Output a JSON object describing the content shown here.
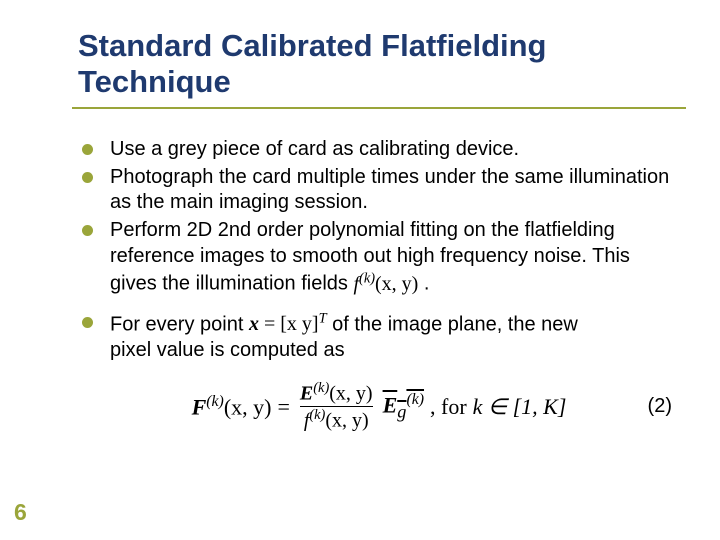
{
  "colors": {
    "title": "#1f3a6f",
    "accent": "#9aa53a",
    "text": "#000000",
    "background": "#ffffff"
  },
  "typography": {
    "title_fontsize": 31,
    "body_fontsize": 20,
    "equation_fontsize": 22,
    "title_weight": "bold",
    "font_family_body": "Arial",
    "font_family_math": "Georgia"
  },
  "slide": {
    "title": "Standard Calibrated Flatfielding Technique",
    "page_number": "6",
    "bullets": [
      {
        "text": "Use a grey piece of card as calibrating device."
      },
      {
        "text": "Photograph the card multiple times under the same illumination as the main imaging session."
      },
      {
        "pre": "Perform 2D 2nd order polynomial fitting on the flatfielding reference images to smooth out high frequency noise. This gives the illumination fields ",
        "math_f": "f",
        "math_sup": "(k)",
        "math_args": "(x, y)",
        "post": " ."
      },
      {
        "pre": "For every point ",
        "math_x": "x",
        "math_eq": " = ",
        "math_vec": "[x  y]",
        "math_T": "T",
        "post1": " of the image plane, the new",
        "line2": "pixel value is computed as"
      }
    ],
    "equation": {
      "lhs_F": "F",
      "lhs_sup": "(k)",
      "lhs_args": "(x, y)",
      "equals": "=",
      "num_E": "E",
      "num_sup": "(k)",
      "num_args": "(x, y)",
      "den_f": "f",
      "den_sup": "(k)",
      "den_args": "(x, y)",
      "times_E": "E",
      "times_sub": "g",
      "times_sup": "(k)",
      "tail": ",   for ",
      "range": "k ∈ [1, K]",
      "number": "(2)"
    }
  }
}
